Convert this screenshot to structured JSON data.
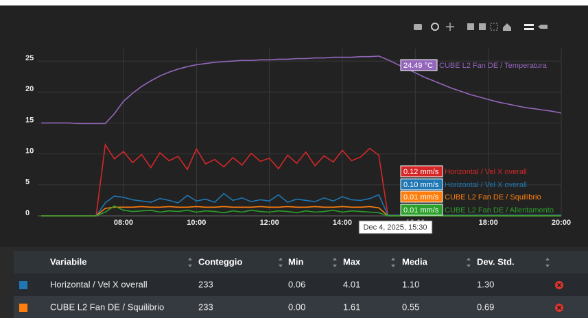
{
  "chart_data": {
    "type": "line",
    "x": [
      5.75,
      6,
      6.25,
      6.5,
      6.75,
      7,
      7.25,
      7.5,
      7.75,
      8,
      8.25,
      8.5,
      8.75,
      9,
      9.25,
      9.5,
      9.75,
      10,
      10.25,
      10.5,
      10.75,
      11,
      11.25,
      11.5,
      11.75,
      12,
      12.25,
      12.5,
      12.75,
      13,
      13.25,
      13.5,
      13.75,
      14,
      14.25,
      14.5,
      14.75,
      15,
      15.25,
      15.5,
      15.75,
      16,
      16.25,
      16.5,
      16.75,
      17,
      17.25,
      17.5,
      17.75,
      18,
      18.25,
      18.5,
      18.75,
      19,
      19.25,
      19.5,
      19.75,
      20
    ],
    "xlim": [
      5.65,
      20
    ],
    "xticks": [
      {
        "value": 8,
        "label": "08:00"
      },
      {
        "value": 10,
        "label": "10:00"
      },
      {
        "value": 12,
        "label": "12:00"
      },
      {
        "value": 14,
        "label": "14:00"
      },
      {
        "value": 16,
        "label": "16:00"
      },
      {
        "value": 18,
        "label": "18:00"
      },
      {
        "value": 20,
        "label": "20:00"
      }
    ],
    "ylim": [
      -1,
      27
    ],
    "yticks": [
      0,
      5,
      10,
      15,
      20,
      25
    ],
    "grid": true,
    "series": [
      {
        "name": "CUBE L2 Fan DE / Temperatura",
        "color": "#9467bd",
        "values": [
          15.0,
          15.0,
          15.0,
          15.0,
          14.9,
          14.9,
          14.9,
          14.9,
          16.5,
          18.5,
          19.8,
          20.9,
          21.8,
          22.6,
          23.2,
          23.7,
          24.1,
          24.4,
          24.6,
          24.8,
          24.9,
          25.0,
          25.1,
          25.1,
          25.2,
          25.2,
          25.3,
          25.3,
          25.4,
          25.4,
          25.5,
          25.5,
          25.6,
          25.6,
          25.6,
          25.7,
          25.7,
          25.8,
          25.2,
          24.49,
          23.8,
          23.1,
          22.4,
          21.8,
          21.2,
          20.6,
          20.1,
          19.6,
          19.2,
          18.8,
          18.4,
          18.1,
          17.8,
          17.5,
          17.3,
          17.1,
          16.9,
          16.6
        ]
      },
      {
        "name": "Horizontal / Vel X overall",
        "color": "#d62728",
        "values": [
          0,
          0,
          0,
          0,
          0,
          0,
          0,
          11.5,
          9.2,
          10.4,
          8.6,
          9.9,
          7.8,
          10.2,
          8.9,
          9.6,
          7.5,
          10.8,
          8.4,
          9.1,
          7.9,
          9.4,
          8.2,
          10.1,
          8.8,
          9.3,
          7.6,
          9.8,
          8.5,
          10.3,
          8.1,
          9.7,
          8.7,
          10.6,
          8.9,
          9.5,
          10.9,
          9.8,
          0.1,
          0.12,
          0.1,
          0.1,
          0.1,
          0.1,
          0.1,
          0.1,
          0.1,
          0.1,
          0.1,
          0.1,
          0.1,
          0.1,
          0.1,
          0.1,
          0.1,
          0.1,
          0.1,
          0.1
        ]
      },
      {
        "name": "Horizontal / Vel X overall",
        "color": "#1f77b4",
        "values": [
          0,
          0,
          0,
          0,
          0,
          0,
          0,
          2.1,
          3.2,
          3.0,
          2.6,
          2.4,
          2.2,
          2.8,
          2.5,
          2.1,
          3.3,
          2.4,
          2.7,
          2.2,
          3.6,
          2.5,
          2.9,
          2.3,
          2.6,
          2.4,
          3.4,
          2.2,
          2.7,
          2.5,
          2.3,
          2.9,
          2.4,
          3.1,
          2.6,
          2.5,
          2.8,
          3.4,
          0.1,
          0.1,
          0.1,
          0.1,
          0.1,
          0.1,
          0.1,
          0.1,
          0.1,
          0.1,
          0.1,
          0.1,
          0.1,
          0.1,
          0.1,
          0.1,
          0.1,
          0.1,
          0.1,
          0.1
        ]
      },
      {
        "name": "CUBE L2 Fan DE / Squilibrio",
        "color": "#ff7f0e",
        "values": [
          0,
          0,
          0,
          0,
          0,
          0,
          0,
          1.2,
          1.4,
          1.4,
          1.4,
          1.5,
          1.4,
          1.4,
          1.5,
          1.4,
          1.4,
          1.5,
          1.4,
          1.4,
          1.5,
          1.4,
          1.4,
          1.4,
          1.5,
          1.4,
          1.4,
          1.5,
          1.4,
          1.4,
          1.5,
          1.4,
          1.4,
          1.5,
          1.4,
          1.4,
          1.5,
          1.3,
          0.01,
          0.01,
          0.01,
          0.01,
          0.01,
          0.01,
          0.01,
          0.01,
          0.01,
          0.01,
          0.01,
          0.01,
          0.01,
          0.01,
          0.01,
          0.01,
          0.01,
          0.01,
          0.01,
          0.01
        ]
      },
      {
        "name": "CUBE L2 Fan DE / Allentamento",
        "color": "#2ca02c",
        "values": [
          0,
          0,
          0,
          0,
          0,
          0,
          0,
          0.6,
          1.6,
          0.9,
          0.7,
          0.8,
          0.9,
          0.6,
          0.8,
          0.7,
          0.9,
          0.6,
          0.8,
          0.7,
          0.5,
          0.8,
          0.6,
          0.9,
          0.7,
          0.6,
          0.8,
          0.7,
          0.5,
          0.8,
          0.6,
          0.7,
          0.9,
          0.6,
          0.8,
          0.7,
          0.6,
          0.5,
          0.01,
          0.01,
          0.01,
          0.01,
          0.01,
          0.01,
          0.01,
          0.01,
          0.01,
          0.01,
          0.01,
          0.01,
          0.01,
          0.01,
          0.01,
          0.01,
          0.01,
          0.01,
          0.01,
          0.01
        ]
      }
    ],
    "hover": {
      "title": "Dec 4, 2025, 15:30",
      "labels": [
        "24.49 °C",
        "0.12 mm/s",
        "0.10 mm/s",
        "0.01 mm/s",
        "0.01 mm/s"
      ]
    }
  },
  "table": {
    "columns": [
      "Variabile",
      "Conteggio",
      "Min",
      "Max",
      "Media",
      "Dev. Std."
    ],
    "rows": [
      {
        "color": "#1f77b4",
        "cells": [
          "Horizontal / Vel X overall",
          "233",
          "0.06",
          "4.01",
          "1.10",
          "1.30"
        ]
      },
      {
        "color": "#ff7f0e",
        "cells": [
          "CUBE L2 Fan DE / Squilibrio",
          "233",
          "0.00",
          "1.61",
          "0.55",
          "0.69"
        ]
      }
    ]
  }
}
